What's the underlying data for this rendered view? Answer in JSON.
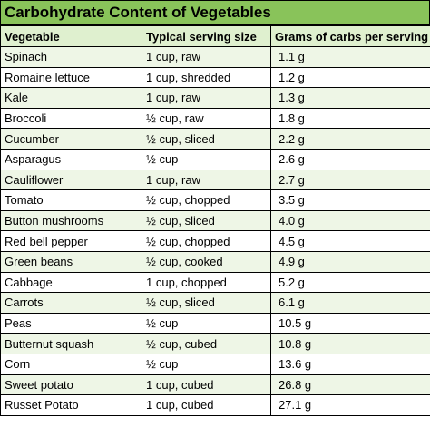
{
  "title": "Carbohydrate Content of Vegetables",
  "columns": [
    "Vegetable",
    "Typical serving size",
    "Grams of carbs per serving"
  ],
  "rows": [
    [
      "Spinach",
      "1 cup, raw",
      "1.1 g"
    ],
    [
      "Romaine lettuce",
      "1 cup, shredded",
      "1.2 g"
    ],
    [
      "Kale",
      "1 cup, raw",
      "1.3 g"
    ],
    [
      "Broccoli",
      "½ cup, raw",
      "1.8 g"
    ],
    [
      "Cucumber",
      "½ cup, sliced",
      "2.2 g"
    ],
    [
      "Asparagus",
      "½ cup",
      "2.6 g"
    ],
    [
      "Cauliflower",
      "1 cup, raw",
      "2.7 g"
    ],
    [
      "Tomato",
      "½ cup, chopped",
      "3.5 g"
    ],
    [
      "Button mushrooms",
      "½ cup, sliced",
      "4.0 g"
    ],
    [
      "Red bell pepper",
      "½ cup, chopped",
      "4.5 g"
    ],
    [
      "Green beans",
      "½ cup, cooked",
      "4.9 g"
    ],
    [
      "Cabbage",
      "1 cup, chopped",
      "5.2 g"
    ],
    [
      "Carrots",
      "½ cup, sliced",
      "6.1 g"
    ],
    [
      "Peas",
      "½ cup",
      "10.5 g"
    ],
    [
      "Butternut squash",
      "½ cup, cubed",
      "10.8 g"
    ],
    [
      "Corn",
      "½ cup",
      "13.6 g"
    ],
    [
      "Sweet potato",
      "1 cup, cubed",
      "26.8 g"
    ],
    [
      "Russet Potato",
      "1 cup, cubed",
      "27.1 g"
    ]
  ],
  "colors": {
    "title_bg": "#89c35a",
    "header_bg": "#dff0cf",
    "odd_row_bg": "#eef6e6",
    "even_row_bg": "#ffffff"
  }
}
